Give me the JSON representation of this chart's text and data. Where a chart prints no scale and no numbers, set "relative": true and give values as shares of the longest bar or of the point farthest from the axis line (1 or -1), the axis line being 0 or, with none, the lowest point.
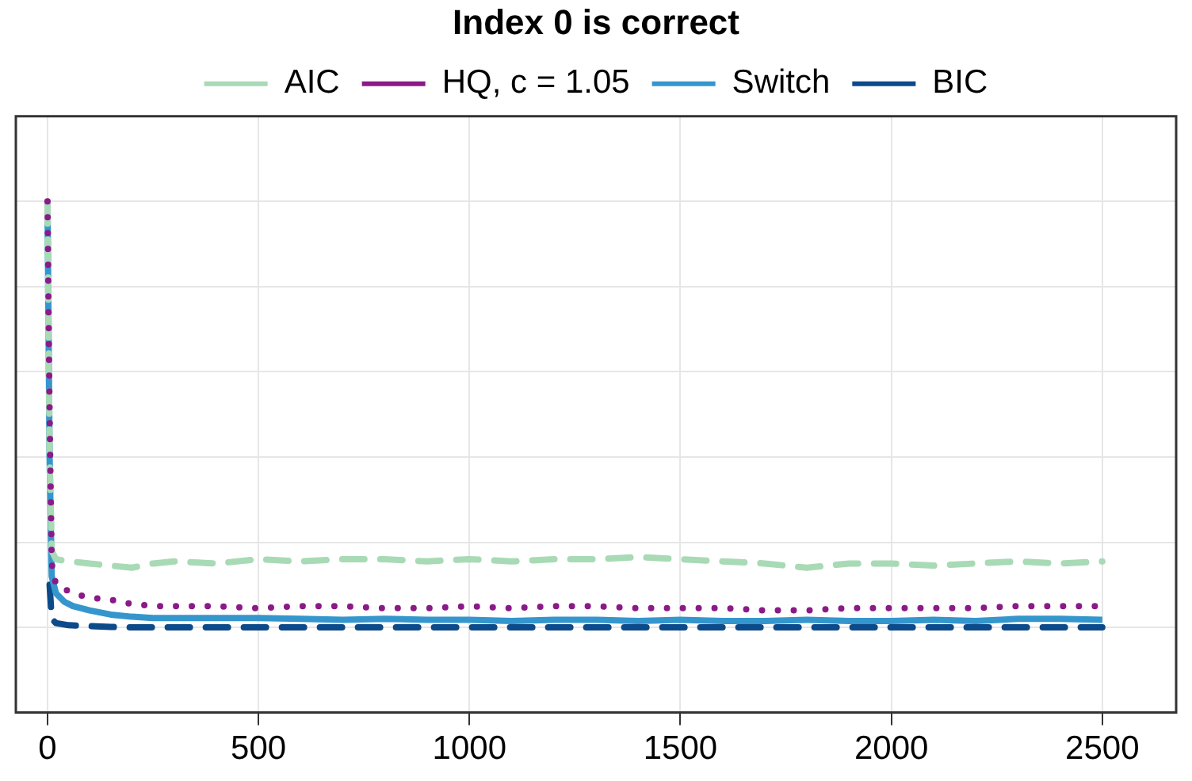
{
  "chart_data": {
    "type": "line",
    "title": "Index 0 is correct",
    "relative": true,
    "xlim": [
      -75,
      2675
    ],
    "xticks": [
      0,
      500,
      1000,
      1500,
      2000,
      2500
    ],
    "grid": true,
    "legend": "top",
    "marker": "none",
    "series": [
      {
        "name": "AIC",
        "color": "#a8dab5",
        "line_style": "dashed",
        "x": [
          0,
          5,
          10,
          20,
          50,
          100,
          150,
          200,
          250,
          300,
          400,
          500,
          600,
          700,
          800,
          900,
          1000,
          1100,
          1200,
          1300,
          1400,
          1500,
          1600,
          1700,
          1800,
          1900,
          2000,
          2100,
          2200,
          2300,
          2400,
          2500
        ],
        "values": [
          1,
          0.4,
          0.18,
          0.16,
          0.155,
          0.15,
          0.145,
          0.14,
          0.15,
          0.155,
          0.15,
          0.16,
          0.155,
          0.16,
          0.16,
          0.155,
          0.16,
          0.155,
          0.16,
          0.16,
          0.165,
          0.16,
          0.155,
          0.15,
          0.14,
          0.15,
          0.15,
          0.145,
          0.15,
          0.155,
          0.15,
          0.155
        ]
      },
      {
        "name": "HQ, c = 1.05",
        "color": "#8b1a89",
        "line_style": "dotted",
        "x": [
          0,
          5,
          10,
          20,
          40,
          60,
          100,
          150,
          200,
          250,
          300,
          400,
          500,
          600,
          700,
          800,
          900,
          1000,
          1100,
          1200,
          1300,
          1400,
          1500,
          1600,
          1700,
          1800,
          1900,
          2000,
          2100,
          2200,
          2300,
          2400,
          2500
        ],
        "values": [
          1,
          0.5,
          0.15,
          0.1,
          0.09,
          0.08,
          0.07,
          0.065,
          0.055,
          0.05,
          0.05,
          0.05,
          0.045,
          0.05,
          0.05,
          0.045,
          0.045,
          0.05,
          0.045,
          0.05,
          0.05,
          0.045,
          0.045,
          0.045,
          0.04,
          0.04,
          0.045,
          0.045,
          0.045,
          0.045,
          0.05,
          0.05,
          0.05
        ]
      },
      {
        "name": "Switch",
        "color": "#3596cd",
        "line_style": "solid",
        "x": [
          0,
          5,
          10,
          20,
          40,
          60,
          100,
          150,
          200,
          250,
          300,
          400,
          500,
          600,
          700,
          800,
          900,
          1000,
          1100,
          1200,
          1300,
          1400,
          1500,
          1600,
          1700,
          1800,
          1900,
          2000,
          2100,
          2200,
          2300,
          2400,
          2500
        ],
        "values": [
          1,
          0.4,
          0.12,
          0.08,
          0.06,
          0.05,
          0.04,
          0.03,
          0.025,
          0.022,
          0.022,
          0.022,
          0.022,
          0.02,
          0.018,
          0.02,
          0.018,
          0.018,
          0.015,
          0.018,
          0.018,
          0.015,
          0.018,
          0.015,
          0.015,
          0.018,
          0.015,
          0.015,
          0.018,
          0.015,
          0.02,
          0.02,
          0.018
        ]
      },
      {
        "name": "BIC",
        "color": "#0d4a8a",
        "line_style": "dashed",
        "x": [
          5,
          10,
          20,
          50,
          100,
          150,
          200,
          300,
          500,
          1000,
          1500,
          2000,
          2500
        ],
        "values": [
          0.1,
          0.02,
          0.01,
          0.005,
          0.003,
          0.001,
          0,
          0,
          0,
          0,
          0,
          0,
          0
        ]
      }
    ]
  }
}
